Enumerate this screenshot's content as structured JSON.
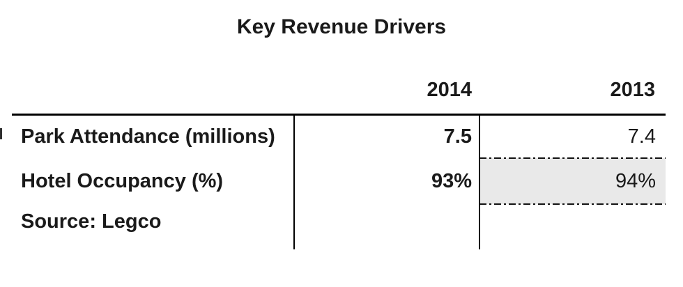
{
  "title": "Key Revenue Drivers",
  "table": {
    "year_columns": [
      "2014",
      "2013"
    ],
    "rows": [
      {
        "label": "Park Attendance (millions)",
        "values": {
          "2014": "7.5",
          "2013": "7.4"
        }
      },
      {
        "label": "Hotel Occupancy (%)",
        "values": {
          "2014": "93%",
          "2013": "94%"
        }
      }
    ],
    "source_note": "Source: Legco"
  },
  "highlight": {
    "cell": "Hotel Occupancy (%) x 2013",
    "value": "94%",
    "background": "#e9e9e9",
    "border_style": "dash-dot"
  },
  "colors": {
    "page_bg": "#ffffff",
    "text": "#1a1a1a",
    "rule": "#000000",
    "highlight_bg": "#e9e9e9"
  }
}
